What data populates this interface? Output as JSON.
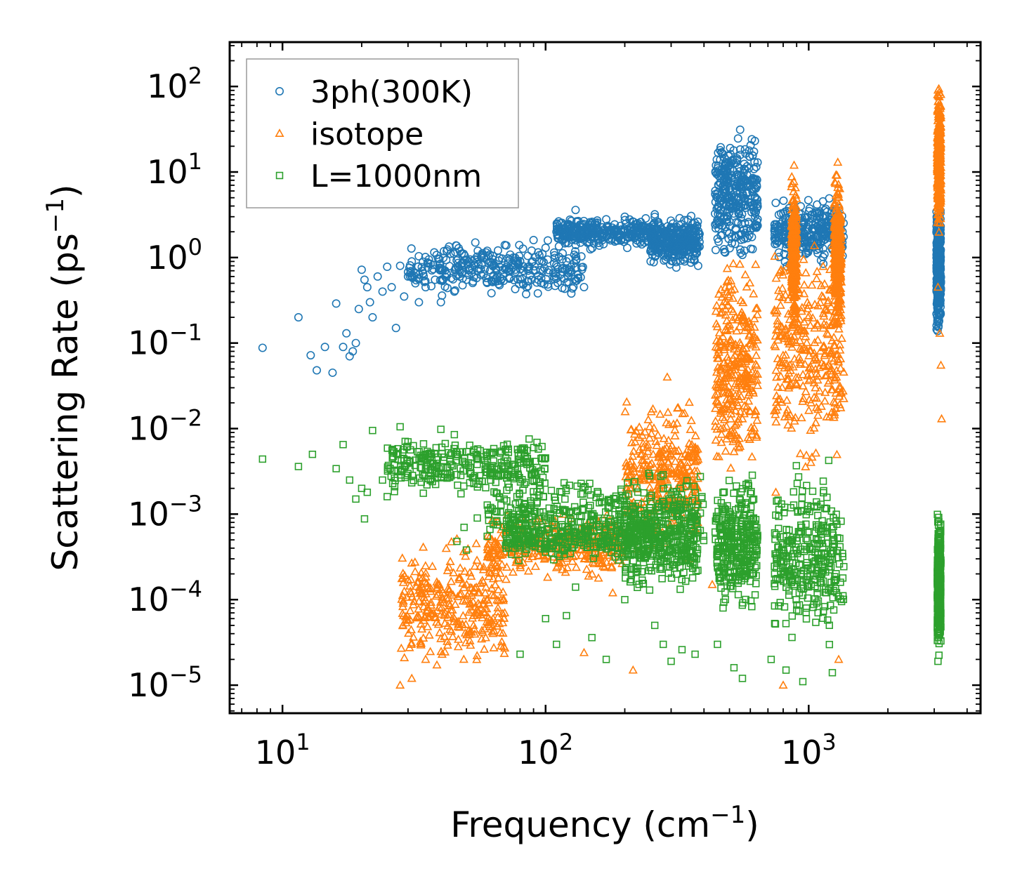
{
  "chart_data": {
    "type": "scatter",
    "title": "",
    "xlabel": "Frequency (cm",
    "xlabel_sup": "−1",
    "xlabel_end": ")",
    "ylabel": "Scattering Rate (ps",
    "ylabel_sup": "−1",
    "ylabel_end": ")",
    "xscale": "log",
    "yscale": "log",
    "xlim": [
      6.3,
      4500
    ],
    "ylim": [
      4.7e-06,
      330
    ],
    "x_tick_labels": [
      {
        "base": "10",
        "exp": "1",
        "value": 10
      },
      {
        "base": "10",
        "exp": "2",
        "value": 100
      },
      {
        "base": "10",
        "exp": "3",
        "value": 1000
      }
    ],
    "y_tick_labels": [
      {
        "base": "10",
        "exp": "2",
        "value": 100
      },
      {
        "base": "10",
        "exp": "1",
        "value": 10
      },
      {
        "base": "10",
        "exp": "0",
        "value": 1
      },
      {
        "base": "10",
        "exp": "−1",
        "value": 0.1
      },
      {
        "base": "10",
        "exp": "−2",
        "value": 0.01
      },
      {
        "base": "10",
        "exp": "−3",
        "value": 0.001
      },
      {
        "base": "10",
        "exp": "−4",
        "value": 0.0001
      },
      {
        "base": "10",
        "exp": "−5",
        "value": 1e-05
      }
    ],
    "legend_position": "top-left",
    "series": [
      {
        "name": "3ph(300K)",
        "marker": "circle",
        "color": "#1f77b4",
        "points": [
          [
            8.4,
            0.088
          ],
          [
            11.5,
            0.2
          ],
          [
            12.8,
            0.072
          ],
          [
            13.5,
            0.048
          ],
          [
            14.5,
            0.09
          ],
          [
            15.5,
            0.045
          ],
          [
            16,
            0.29
          ],
          [
            17,
            0.09
          ],
          [
            17.5,
            0.13
          ],
          [
            18,
            0.07
          ],
          [
            18.5,
            0.08
          ],
          [
            19,
            0.1
          ],
          [
            19.5,
            0.25
          ],
          [
            20,
            0.72
          ],
          [
            20.5,
            0.55
          ],
          [
            21,
            0.45
          ],
          [
            21.5,
            0.3
          ],
          [
            22,
            0.2
          ],
          [
            23,
            0.6
          ],
          [
            24,
            0.4
          ],
          [
            25,
            0.78
          ],
          [
            26,
            0.45
          ],
          [
            27,
            0.15
          ],
          [
            28,
            0.8
          ],
          [
            29,
            0.35
          ],
          [
            30,
            0.6
          ],
          [
            31,
            0.9
          ],
          [
            32,
            0.5
          ],
          [
            33,
            0.3
          ],
          [
            34,
            0.7
          ],
          [
            35,
            0.45
          ],
          [
            36,
            0.95
          ],
          [
            38,
            0.55
          ],
          [
            40,
            0.3
          ],
          [
            42,
            0.65
          ],
          [
            45,
            0.4
          ],
          [
            48,
            0.85
          ],
          [
            50,
            0.55
          ],
          [
            55,
            0.95
          ],
          [
            60,
            1.2
          ],
          [
            65,
            0.7
          ],
          [
            70,
            1.4
          ],
          [
            80,
            0.9
          ],
          [
            90,
            1.6
          ],
          [
            100,
            1.3
          ],
          [
            110,
            2.0
          ],
          [
            120,
            1.5
          ],
          [
            130,
            3.6
          ],
          [
            140,
            2.0
          ],
          [
            150,
            2.5
          ],
          [
            170,
            2.8
          ],
          [
            200,
            3.0
          ],
          [
            230,
            2.6
          ],
          [
            260,
            3.2
          ],
          [
            300,
            2.2
          ],
          [
            330,
            1.1
          ],
          [
            360,
            1.8
          ],
          [
            380,
            0.8
          ]
        ],
        "bands": [
          {
            "x_range": [
              30,
              140
            ],
            "y_range": [
              0.3,
              1.8
            ]
          },
          {
            "x_range": [
              110,
              260
            ],
            "y_range": [
              1.2,
              3.2
            ]
          },
          {
            "x_range": [
              250,
              385
            ],
            "y_range": [
              0.7,
              3.5
            ]
          },
          {
            "x_range": [
              440,
              640
            ],
            "y_range": [
              0.6,
              45
            ]
          },
          {
            "x_range": [
              740,
              1360
            ],
            "y_range": [
              0.7,
              5.5
            ]
          },
          {
            "x_range": [
              3060,
              3180
            ],
            "y_range": [
              0.1,
              6
            ]
          }
        ]
      },
      {
        "name": "isotope",
        "marker": "triangle",
        "color": "#ff7f0e",
        "points": [
          [
            28,
            1e-05
          ],
          [
            31,
            1.2e-05
          ],
          [
            35,
            2e-05
          ],
          [
            40,
            3.5e-05
          ],
          [
            45,
            6e-05
          ],
          [
            50,
            0.0001
          ],
          [
            58,
            0.00016
          ],
          [
            65,
            0.0004
          ],
          [
            70,
            0.00065
          ],
          [
            80,
            0.00025
          ],
          [
            90,
            0.00035
          ],
          [
            100,
            0.0004
          ],
          [
            140,
            2.4e-05
          ],
          [
            180,
            0.00012
          ],
          [
            215,
            1.5e-05
          ],
          [
            230,
            0.005
          ],
          [
            290,
            0.04
          ],
          [
            350,
            0.0003
          ],
          [
            430,
            0.00015
          ],
          [
            630,
            0.09
          ],
          [
            750,
            0.0018
          ],
          [
            800,
            1e-05
          ],
          [
            880,
            12
          ],
          [
            1020,
            0.02
          ],
          [
            1290,
            13
          ],
          [
            1300,
            2e-05
          ],
          [
            3100,
            0.45
          ],
          [
            3150,
            0.13
          ],
          [
            3180,
            0.055
          ],
          [
            3200,
            0.013
          ]
        ],
        "bands": [
          {
            "x_range": [
              28,
              70
            ],
            "y_range": [
              1e-05,
              0.00065
            ]
          },
          {
            "x_range": [
              60,
              200
            ],
            "y_range": [
              0.00015,
              0.0012
            ]
          },
          {
            "x_range": [
              200,
              380
            ],
            "y_range": [
              0.0003,
              0.03
            ]
          },
          {
            "x_range": [
              440,
              640
            ],
            "y_range": [
              0.002,
              1.5
            ]
          },
          {
            "x_range": [
              740,
              1360
            ],
            "y_range": [
              0.002,
              3
            ]
          },
          {
            "x_range": [
              860,
              900
            ],
            "y_range": [
              0.1,
              12
            ]
          },
          {
            "x_range": [
              1250,
              1330
            ],
            "y_range": [
              0.1,
              12
            ]
          },
          {
            "x_range": [
              3080,
              3180
            ],
            "y_range": [
              1.5,
              140
            ]
          }
        ]
      },
      {
        "name": "L=1000nm",
        "marker": "square",
        "color": "#2ca02c",
        "points": [
          [
            8.4,
            0.0044
          ],
          [
            11.5,
            0.0036
          ],
          [
            13,
            0.005
          ],
          [
            16,
            0.0034
          ],
          [
            17,
            0.0065
          ],
          [
            18,
            0.0025
          ],
          [
            19,
            0.0015
          ],
          [
            20,
            0.002
          ],
          [
            20.5,
            0.00088
          ],
          [
            21,
            0.0018
          ],
          [
            22,
            0.0095
          ],
          [
            24,
            0.0025
          ],
          [
            25,
            0.0016
          ],
          [
            28,
            0.0105
          ],
          [
            30,
            0.007
          ],
          [
            35,
            0.005
          ],
          [
            40,
            0.0098
          ],
          [
            45,
            0.0085
          ],
          [
            46,
            0.00048
          ],
          [
            49,
            0.0007
          ],
          [
            50,
            0.00038
          ],
          [
            55,
            0.0009
          ],
          [
            60,
            0.00055
          ],
          [
            80,
            2.3e-05
          ],
          [
            100,
            6e-05
          ],
          [
            110,
            3e-05
          ],
          [
            120,
            6.5e-05
          ],
          [
            130,
            0.00014
          ],
          [
            150,
            3.6e-05
          ],
          [
            170,
            2e-05
          ],
          [
            200,
            0.0001
          ],
          [
            260,
            5e-05
          ],
          [
            280,
            3e-05
          ],
          [
            300,
            1.9e-05
          ],
          [
            330,
            2.6e-05
          ],
          [
            370,
            2.3e-05
          ],
          [
            450,
            3e-05
          ],
          [
            520,
            1.6e-05
          ],
          [
            560,
            1.2e-05
          ],
          [
            720,
            2e-05
          ],
          [
            820,
            1.5e-05
          ],
          [
            950,
            1.1e-05
          ],
          [
            1230,
            1.4e-05
          ],
          [
            3100,
            1.9e-05
          ]
        ],
        "bands": [
          {
            "x_range": [
              25,
              100
            ],
            "y_range": [
              0.0015,
              0.009
            ]
          },
          {
            "x_range": [
              60,
              400
            ],
            "y_range": [
              0.00035,
              0.0035
            ]
          },
          {
            "x_range": [
              70,
              250
            ],
            "y_range": [
              0.00025,
              0.0012
            ]
          },
          {
            "x_range": [
              200,
              380
            ],
            "y_range": [
              0.0001,
              0.002
            ]
          },
          {
            "x_range": [
              440,
              640
            ],
            "y_range": [
              5e-05,
              0.004
            ]
          },
          {
            "x_range": [
              740,
              1360
            ],
            "y_range": [
              2e-05,
              0.005
            ]
          },
          {
            "x_range": [
              3080,
              3180
            ],
            "y_range": [
              2e-05,
              0.0015
            ]
          }
        ]
      }
    ]
  }
}
